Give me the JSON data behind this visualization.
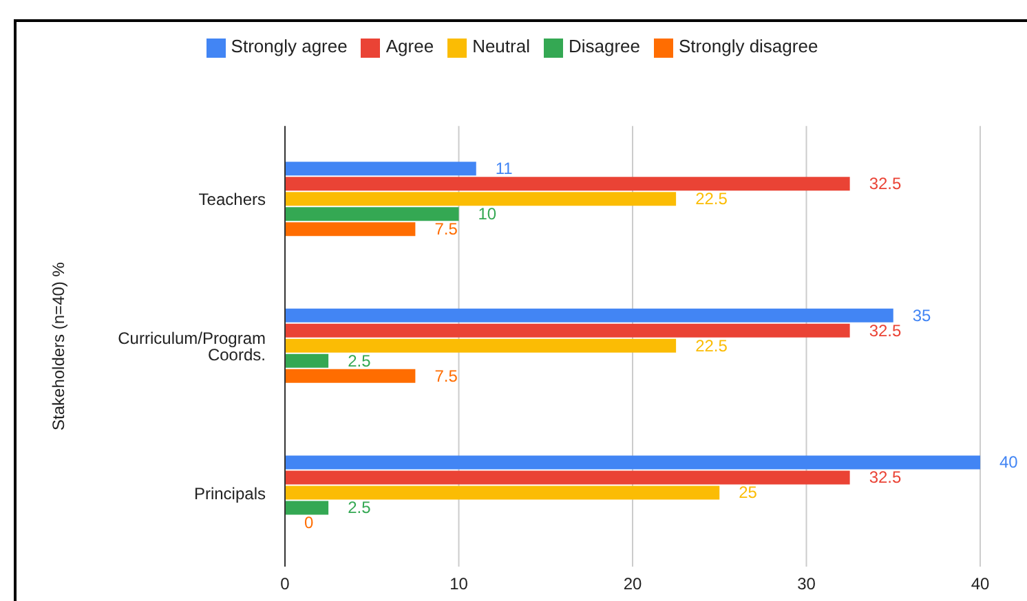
{
  "chart_data": {
    "type": "bar",
    "orientation": "horizontal",
    "ylabel": "Stakeholders (n=40) %",
    "categories": [
      "Teachers",
      "Curriculum/Program Coords.",
      "Principals"
    ],
    "series": [
      {
        "name": "Strongly agree",
        "color": "#4285f4",
        "values": [
          11,
          35,
          40
        ]
      },
      {
        "name": "Agree",
        "color": "#ea4335",
        "values": [
          32.5,
          32.5,
          32.5
        ]
      },
      {
        "name": "Neutral",
        "color": "#fbbc04",
        "values": [
          22.5,
          22.5,
          25
        ]
      },
      {
        "name": "Disagree",
        "color": "#34a853",
        "values": [
          10,
          2.5,
          2.5
        ]
      },
      {
        "name": "Strongly disagree",
        "color": "#ff6d01",
        "values": [
          7.5,
          7.5,
          0
        ]
      }
    ],
    "xlim": [
      0,
      40
    ],
    "xticks": [
      0,
      10,
      20,
      30,
      40
    ],
    "grid": "x",
    "legend": "top",
    "data_labels": true
  }
}
